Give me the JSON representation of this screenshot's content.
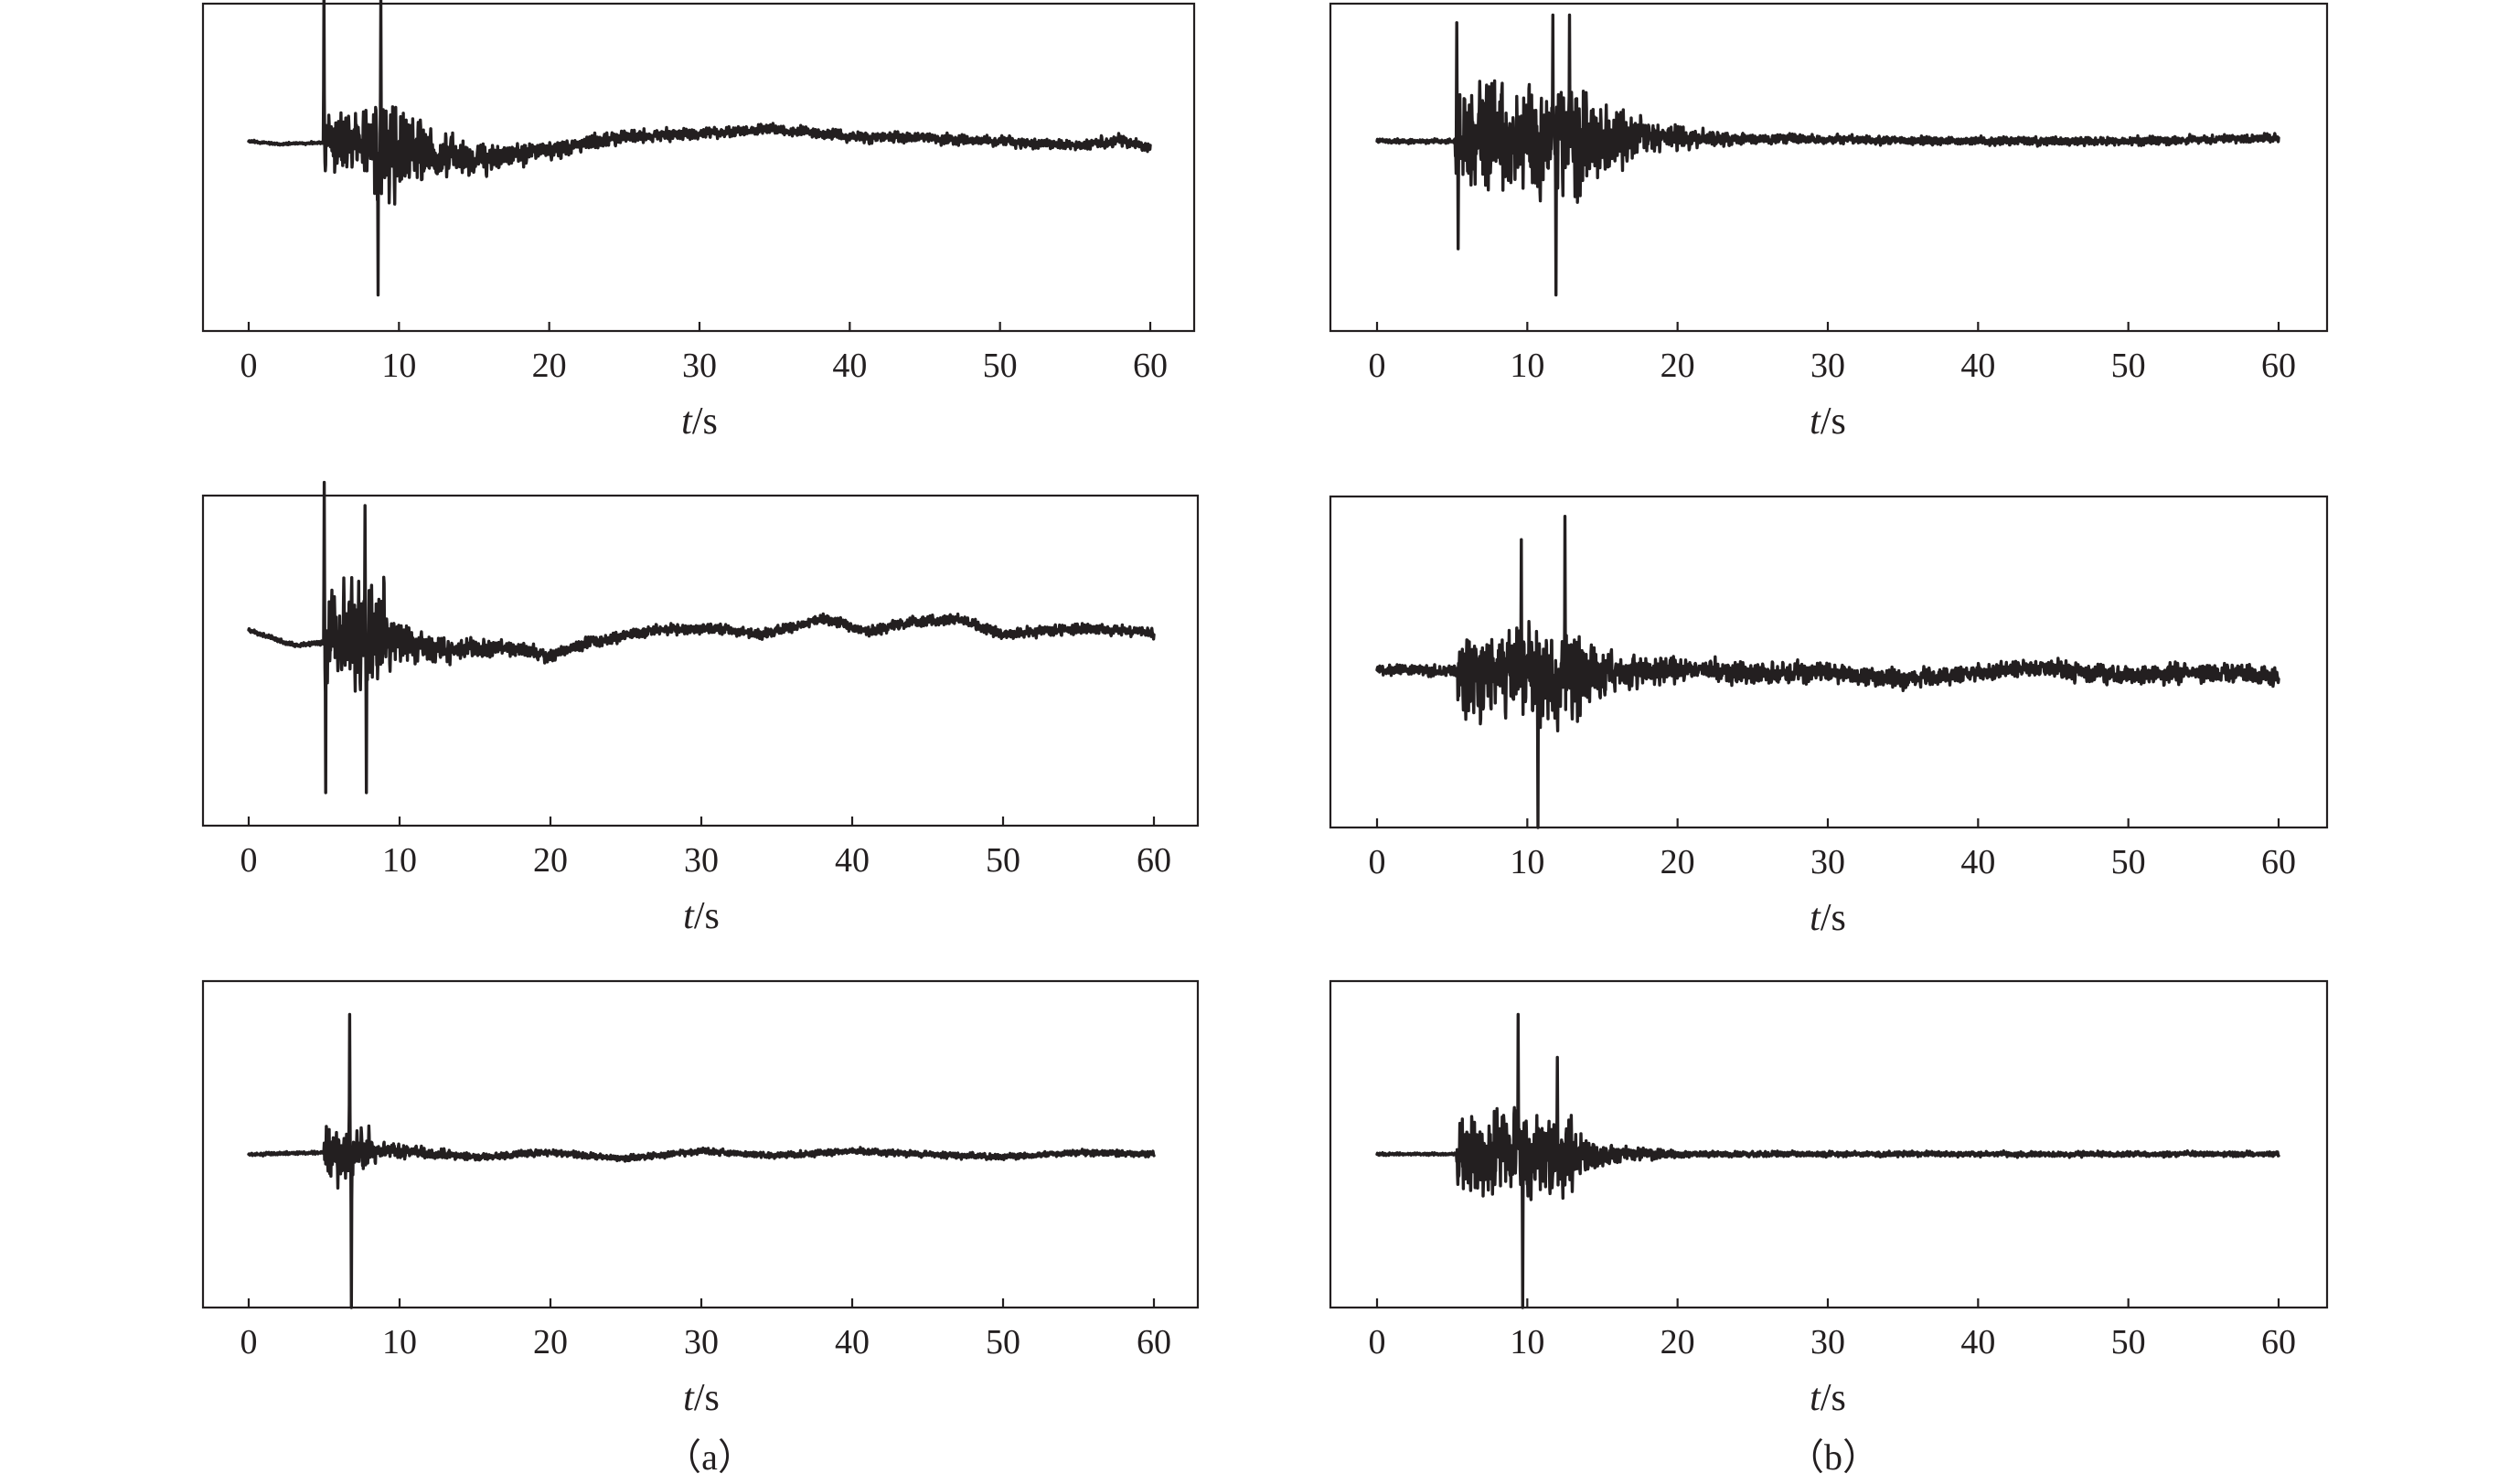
{
  "chart_data": [
    {
      "type": "line",
      "column": "a",
      "row": 0,
      "x_range": [
        0,
        60
      ],
      "x_ticks": [
        0,
        10,
        20,
        30,
        40,
        50,
        60
      ],
      "xlabel": {
        "italic": "t",
        "unit": "/s"
      },
      "y_axis_labels": "none",
      "grid": false,
      "legend": "none",
      "series": [
        {
          "onset_s": 5.0,
          "end_s": 60.0,
          "peaks": [
            {
              "t": 5.0,
              "v": 1.0
            },
            {
              "t": 8.6,
              "v": -1.0
            },
            {
              "t": 8.8,
              "v": 0.93
            }
          ],
          "baseline": [
            [
              0,
              0.0
            ],
            [
              2,
              -0.02
            ],
            [
              5,
              -0.01
            ],
            [
              10,
              -0.05
            ],
            [
              15,
              -0.12
            ],
            [
              20,
              -0.06
            ],
            [
              25,
              0.03
            ],
            [
              30,
              0.05
            ],
            [
              35,
              0.08
            ],
            [
              40,
              0.03
            ],
            [
              45,
              0.02
            ],
            [
              50,
              0.0
            ],
            [
              55,
              -0.03
            ],
            [
              58,
              0.01
            ],
            [
              60,
              -0.04
            ]
          ]
        }
      ]
    },
    {
      "type": "line",
      "column": "a",
      "row": 1,
      "x_range": [
        0,
        60
      ],
      "x_ticks": [
        0,
        10,
        20,
        30,
        40,
        50,
        60
      ],
      "xlabel": {
        "italic": "t",
        "unit": "/s"
      },
      "y_axis_labels": "none",
      "grid": false,
      "legend": "none",
      "series": [
        {
          "onset_s": 5.0,
          "end_s": 60.0,
          "peaks": [
            {
              "t": 5.0,
              "v": 1.0
            },
            {
              "t": 5.1,
              "v": -1.0
            },
            {
              "t": 7.7,
              "v": 0.85
            },
            {
              "t": 7.8,
              "v": -1.0
            }
          ],
          "baseline": [
            [
              0,
              0.05
            ],
            [
              3,
              -0.05
            ],
            [
              8,
              0.0
            ],
            [
              13,
              -0.08
            ],
            [
              17,
              -0.06
            ],
            [
              20,
              -0.12
            ],
            [
              23,
              -0.02
            ],
            [
              27,
              0.05
            ],
            [
              31,
              0.06
            ],
            [
              34,
              0.02
            ],
            [
              38,
              0.12
            ],
            [
              41,
              0.04
            ],
            [
              44,
              0.1
            ],
            [
              47,
              0.12
            ],
            [
              50,
              0.02
            ],
            [
              55,
              0.06
            ],
            [
              60,
              0.03
            ]
          ]
        }
      ]
    },
    {
      "type": "line",
      "column": "a",
      "row": 2,
      "x_range": [
        0,
        60
      ],
      "x_ticks": [
        0,
        10,
        20,
        30,
        40,
        50,
        60
      ],
      "xlabel": {
        "italic": "t",
        "unit": "/s"
      },
      "y_axis_labels": "none",
      "grid": false,
      "legend": "none",
      "series": [
        {
          "onset_s": 5.0,
          "end_s": 60.0,
          "peaks": [
            {
              "t": 6.7,
              "v": 0.91
            },
            {
              "t": 6.8,
              "v": -1.0
            }
          ],
          "baseline": [
            [
              0,
              0.0
            ],
            [
              5,
              0.01
            ],
            [
              10,
              0.02
            ],
            [
              15,
              -0.02
            ],
            [
              20,
              0.01
            ],
            [
              25,
              -0.03
            ],
            [
              30,
              0.02
            ],
            [
              35,
              -0.01
            ],
            [
              40,
              0.02
            ],
            [
              45,
              0.0
            ],
            [
              50,
              -0.02
            ],
            [
              55,
              0.01
            ],
            [
              60,
              0.0
            ]
          ]
        }
      ]
    },
    {
      "type": "line",
      "column": "b",
      "row": 0,
      "x_range": [
        0,
        60
      ],
      "x_ticks": [
        0,
        10,
        20,
        30,
        40,
        50,
        60
      ],
      "xlabel": {
        "italic": "t",
        "unit": "/s"
      },
      "y_axis_labels": "none",
      "grid": false,
      "legend": "none",
      "series": [
        {
          "onset_s": 5.2,
          "end_s": 60.0,
          "peaks": [
            {
              "t": 5.3,
              "v": 0.77
            },
            {
              "t": 5.4,
              "v": -0.7
            },
            {
              "t": 11.7,
              "v": 0.82
            },
            {
              "t": 11.9,
              "v": -1.0
            },
            {
              "t": 12.8,
              "v": 0.82
            }
          ],
          "baseline": [
            [
              0,
              0.0
            ],
            [
              5,
              0.0
            ],
            [
              20,
              0.02
            ],
            [
              30,
              0.01
            ],
            [
              40,
              0.0
            ],
            [
              50,
              0.0
            ],
            [
              60,
              0.02
            ]
          ]
        }
      ]
    },
    {
      "type": "line",
      "column": "b",
      "row": 1,
      "x_range": [
        0,
        60
      ],
      "x_ticks": [
        0,
        10,
        20,
        30,
        40,
        50,
        60
      ],
      "xlabel": {
        "italic": "t",
        "unit": "/s"
      },
      "y_axis_labels": "none",
      "grid": false,
      "legend": "none",
      "series": [
        {
          "onset_s": 5.3,
          "end_s": 60.0,
          "peaks": [
            {
              "t": 9.6,
              "v": 0.85
            },
            {
              "t": 10.7,
              "v": -1.0
            },
            {
              "t": 12.5,
              "v": 1.0
            }
          ],
          "baseline": [
            [
              0,
              0.02
            ],
            [
              5,
              0.0
            ],
            [
              10,
              0.0
            ],
            [
              15,
              -0.02
            ],
            [
              20,
              0.02
            ],
            [
              25,
              -0.01
            ],
            [
              30,
              0.0
            ],
            [
              35,
              -0.05
            ],
            [
              40,
              0.0
            ],
            [
              45,
              0.02
            ],
            [
              50,
              -0.02
            ],
            [
              55,
              0.0
            ],
            [
              60,
              -0.03
            ]
          ]
        }
      ]
    },
    {
      "type": "line",
      "column": "b",
      "row": 2,
      "x_range": [
        0,
        60
      ],
      "x_ticks": [
        0,
        10,
        20,
        30,
        40,
        50,
        60
      ],
      "xlabel": {
        "italic": "t",
        "unit": "/s"
      },
      "y_axis_labels": "none",
      "grid": false,
      "legend": "none",
      "series": [
        {
          "onset_s": 5.3,
          "end_s": 60.0,
          "peaks": [
            {
              "t": 9.4,
              "v": 0.91
            },
            {
              "t": 9.7,
              "v": -1.0
            },
            {
              "t": 12.0,
              "v": 0.63
            }
          ],
          "baseline": [
            [
              0,
              0.0
            ],
            [
              10,
              0.0
            ],
            [
              20,
              0.0
            ],
            [
              30,
              0.0
            ],
            [
              40,
              0.0
            ],
            [
              50,
              0.0
            ],
            [
              60,
              0.0
            ]
          ]
        }
      ]
    }
  ],
  "captions": {
    "a": "（a）",
    "b": "（b）"
  }
}
